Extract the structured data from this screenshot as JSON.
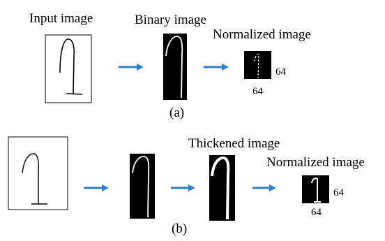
{
  "panels": [
    {
      "label": "(a)",
      "steps": [
        {
          "title": "Input image"
        },
        {
          "title": "Binary image"
        },
        {
          "title": "Normalized image",
          "width_label": "64",
          "height_label": "64"
        }
      ]
    },
    {
      "label": "(b)",
      "steps": [
        {
          "title": "Thickened image"
        },
        {
          "title": "Normalized image",
          "width_label": "64",
          "height_label": "64"
        }
      ]
    }
  ]
}
